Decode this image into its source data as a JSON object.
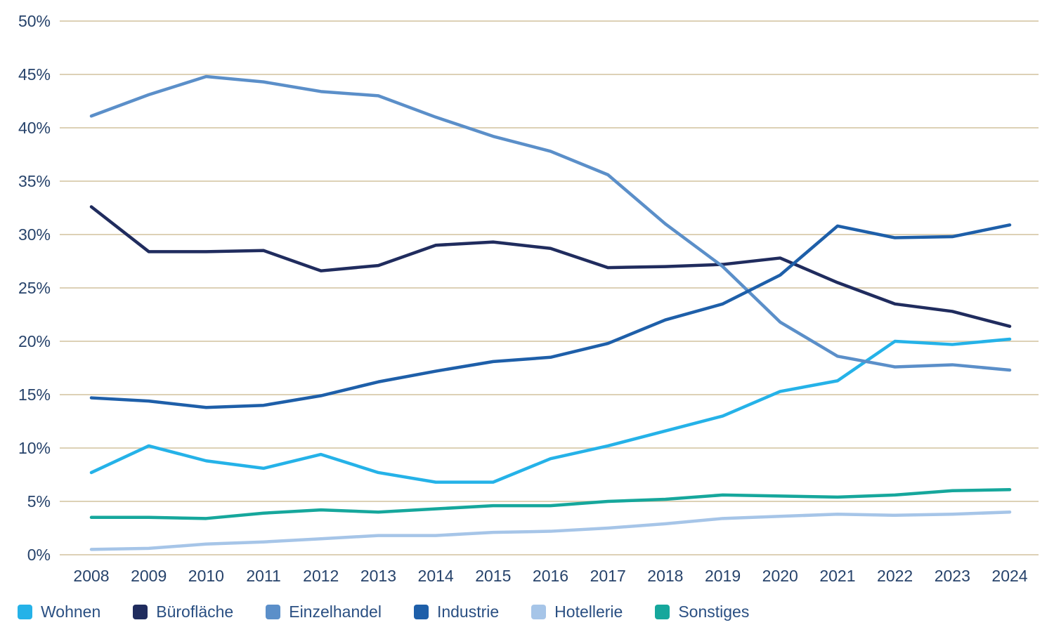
{
  "colors": {
    "grid": "#ddd1b6",
    "axis_text": "#27436b",
    "legend_text": "#2a4f82",
    "background": "#ffffff"
  },
  "chart_data": {
    "type": "line",
    "title": "",
    "xlabel": "",
    "ylabel": "",
    "ylim": [
      0,
      50
    ],
    "ytick_step": 5,
    "ytick_suffix": "%",
    "grid": true,
    "legend_position": "bottom",
    "x": [
      "2008",
      "2009",
      "2010",
      "2011",
      "2012",
      "2013",
      "2014",
      "2015",
      "2016",
      "2017",
      "2018",
      "2019",
      "2020",
      "2021",
      "2022",
      "2023",
      "2024"
    ],
    "series": [
      {
        "name": "Wohnen",
        "color": "#25b2e8",
        "values": [
          7.7,
          10.2,
          8.8,
          8.1,
          9.4,
          7.7,
          6.8,
          6.8,
          9.0,
          10.2,
          11.6,
          13.0,
          15.3,
          16.3,
          20.0,
          19.7,
          20.2
        ]
      },
      {
        "name": "Bürofläche",
        "color": "#202c5e",
        "values": [
          32.6,
          28.4,
          28.4,
          28.5,
          26.6,
          27.1,
          29.0,
          29.3,
          28.7,
          26.9,
          27.0,
          27.2,
          27.8,
          25.5,
          23.5,
          22.8,
          21.4
        ]
      },
      {
        "name": "Einzelhandel",
        "color": "#5b8fc9",
        "values": [
          41.1,
          43.1,
          44.8,
          44.3,
          43.4,
          43.0,
          41.0,
          39.2,
          37.8,
          35.6,
          31.0,
          27.0,
          21.8,
          18.6,
          17.6,
          17.8,
          17.3
        ]
      },
      {
        "name": "Industrie",
        "color": "#1e5fa9",
        "values": [
          14.7,
          14.4,
          13.8,
          14.0,
          14.9,
          16.2,
          17.2,
          18.1,
          18.5,
          19.8,
          22.0,
          23.5,
          26.2,
          30.8,
          29.7,
          29.8,
          30.9
        ]
      },
      {
        "name": "Hotellerie",
        "color": "#a6c5e8",
        "values": [
          0.5,
          0.6,
          1.0,
          1.2,
          1.5,
          1.8,
          1.8,
          2.1,
          2.2,
          2.5,
          2.9,
          3.4,
          3.6,
          3.8,
          3.7,
          3.8,
          4.0
        ]
      },
      {
        "name": "Sonstiges",
        "color": "#16a79c",
        "values": [
          3.5,
          3.5,
          3.4,
          3.9,
          4.2,
          4.0,
          4.3,
          4.6,
          4.6,
          5.0,
          5.2,
          5.6,
          5.5,
          5.4,
          5.6,
          6.0,
          6.1
        ]
      }
    ]
  }
}
